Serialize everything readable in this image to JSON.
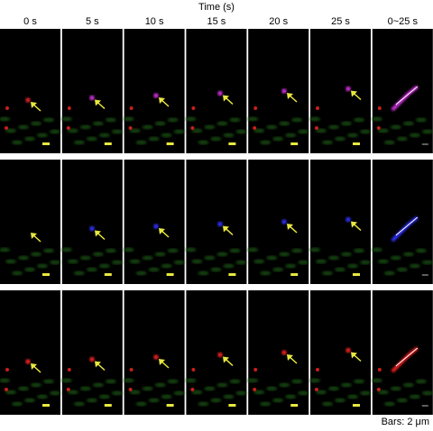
{
  "header": {
    "title": "Time (s)",
    "columns": [
      "0 s",
      "5 s",
      "10 s",
      "15 s",
      "20 s",
      "25 s",
      "0~25 s"
    ]
  },
  "footer": {
    "scale_note": "Bars: 2 μm"
  }
}
